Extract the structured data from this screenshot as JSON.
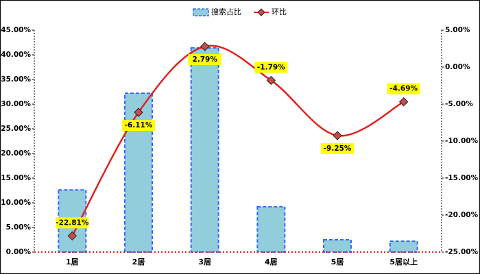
{
  "chart_data": {
    "type": "bar-line",
    "categories": [
      "1居",
      "2居",
      "3居",
      "4居",
      "5居",
      "5居以上"
    ],
    "series": [
      {
        "name": "搜索占比",
        "type": "bar",
        "color": "#92cddc",
        "values": [
          12.6,
          32.2,
          41.4,
          9.2,
          2.5,
          2.2
        ]
      },
      {
        "name": "环比",
        "type": "line",
        "axis": "y2",
        "color": "#e02020",
        "values": [
          -22.81,
          -6.11,
          2.79,
          -1.79,
          -9.25,
          -4.69
        ],
        "value_labels": [
          "-22.81%",
          "-6.11%",
          "2.79%",
          "-1.79%",
          "-9.25%",
          "-4.69%"
        ]
      }
    ],
    "ylim": [
      0,
      45
    ],
    "yticks": [
      {
        "value": 0,
        "label": "0.00%"
      },
      {
        "value": 5,
        "label": "5.00%"
      },
      {
        "value": 10,
        "label": "10.00%"
      },
      {
        "value": 15,
        "label": "15.00%"
      },
      {
        "value": 20,
        "label": "20.00%"
      },
      {
        "value": 25,
        "label": "25.00%"
      },
      {
        "value": 30,
        "label": "30.00%"
      },
      {
        "value": 35,
        "label": "35.00%"
      },
      {
        "value": 40,
        "label": "40.00%"
      },
      {
        "value": 45,
        "label": "45.00%"
      }
    ],
    "y2lim": [
      -25,
      5
    ],
    "y2ticks": [
      {
        "value": -25,
        "label": "-25.00%"
      },
      {
        "value": -20,
        "label": "-20.00%"
      },
      {
        "value": -15,
        "label": "-15.00%"
      },
      {
        "value": -10,
        "label": "-10.00%"
      },
      {
        "value": -5,
        "label": "-5.00%"
      },
      {
        "value": 0,
        "label": "0.00%"
      },
      {
        "value": 5,
        "label": "5.00%"
      }
    ],
    "legend": "top"
  }
}
